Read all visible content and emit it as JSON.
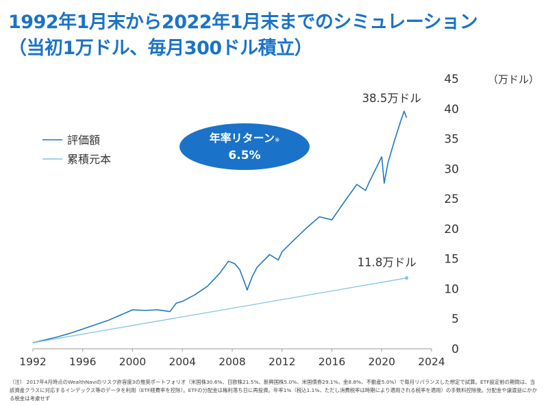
{
  "title": {
    "line1": "1992年1月末から2022年1月末までのシミュレーション",
    "line2": "（当初1万ドル、毎月300ドル積立）"
  },
  "chart_data": {
    "type": "line",
    "x_ticks": [
      1992,
      1996,
      2000,
      2004,
      2008,
      2012,
      2016,
      2020,
      2024
    ],
    "y_ticks": [
      0,
      5,
      10,
      15,
      20,
      25,
      30,
      35,
      40,
      45
    ],
    "xlim": [
      1992,
      2024
    ],
    "ylim": [
      0,
      45
    ],
    "y_unit_label": "（万ドル）",
    "grid": false,
    "y_axis_side": "right",
    "legend_position": "top-left",
    "series": [
      {
        "name": "評価額",
        "color": "#1f77c4",
        "points": [
          [
            1992.0,
            1.0
          ],
          [
            1993.0,
            1.5
          ],
          [
            1994.0,
            2.0
          ],
          [
            1995.0,
            2.6
          ],
          [
            1996.0,
            3.3
          ],
          [
            1997.0,
            4.0
          ],
          [
            1998.0,
            4.7
          ],
          [
            1999.0,
            5.6
          ],
          [
            2000.0,
            6.5
          ],
          [
            2001.0,
            6.4
          ],
          [
            2002.0,
            6.5
          ],
          [
            2003.0,
            6.2
          ],
          [
            2003.5,
            7.6
          ],
          [
            2004.0,
            7.9
          ],
          [
            2005.0,
            9.0
          ],
          [
            2006.0,
            10.4
          ],
          [
            2007.0,
            12.6
          ],
          [
            2007.7,
            14.6
          ],
          [
            2008.2,
            14.2
          ],
          [
            2008.6,
            13.2
          ],
          [
            2009.0,
            11.0
          ],
          [
            2009.2,
            9.8
          ],
          [
            2009.6,
            12.0
          ],
          [
            2010.0,
            13.6
          ],
          [
            2011.0,
            15.7
          ],
          [
            2011.7,
            14.8
          ],
          [
            2012.0,
            16.2
          ],
          [
            2013.0,
            18.2
          ],
          [
            2014.0,
            20.2
          ],
          [
            2015.0,
            22.0
          ],
          [
            2016.0,
            21.5
          ],
          [
            2017.0,
            24.5
          ],
          [
            2018.0,
            27.4
          ],
          [
            2018.7,
            26.4
          ],
          [
            2019.0,
            27.8
          ],
          [
            2020.0,
            32.0
          ],
          [
            2020.2,
            27.6
          ],
          [
            2020.5,
            31.0
          ],
          [
            2021.0,
            34.5
          ],
          [
            2021.5,
            37.8
          ],
          [
            2021.8,
            39.6
          ],
          [
            2022.0,
            38.5
          ]
        ],
        "end_label": "38.5万ドル"
      },
      {
        "name": "累積元本",
        "color": "#7ec3e6",
        "points": [
          [
            1992.0,
            1.0
          ],
          [
            2022.0,
            11.8
          ]
        ],
        "end_label": "11.8万ドル"
      }
    ]
  },
  "badge": {
    "label": "年率リターン",
    "mark": "※",
    "value": "6.5%"
  },
  "footnote": "（注） 2017年4月時点のWealthNaviのリスク許容度3の推奨ポートフォリオ（米国株30.6%、日欧株21.5%、新興国株5.0%、米国債券29.1%、金8.8%、不動産5.0%）で毎月リバランスした想定で試算。ETF設定前の期間は、当該資産クラスに対応するインデックス等のデータを利用（ETF経費率を控除）。ETFの分配金は権利落ち日に再投資。年率1%（税込1.1%、ただし消費税率は時期により適用される税率を適用）の手数料控除後。分配金や譲渡益にかかる税金は考慮せず",
  "colors": {
    "title": "#1a73c8",
    "badge_fill": "#1a73c8",
    "badge_text": "#ffffff",
    "axis": "#999999"
  }
}
